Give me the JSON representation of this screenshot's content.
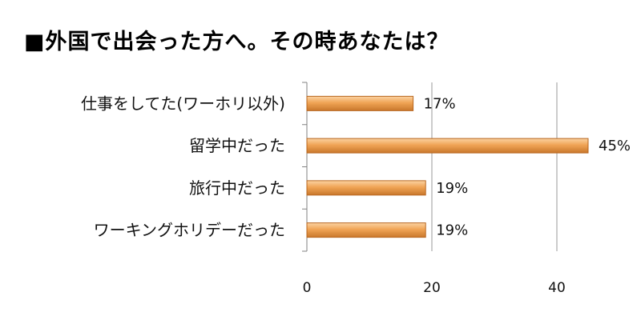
{
  "chart_data": {
    "type": "bar",
    "orientation": "horizontal",
    "title": "■外国で出会った方へ。その時あなたは？",
    "categories": [
      "仕事をしてた(ワーホリ以外)",
      "留学中だった",
      "旅行中だった",
      "ワーキングホリデーだった"
    ],
    "values": [
      17,
      45,
      19,
      19
    ],
    "data_labels": [
      "17%",
      "45%",
      "19%",
      "19%"
    ],
    "xlim": [
      0,
      53
    ],
    "xticks": [
      0,
      20,
      40
    ],
    "tick_labels": [
      "0",
      "20",
      "40"
    ],
    "grid": "vertical",
    "legend": "none",
    "bar_color": "#f0a455",
    "bar_edge_color": "#b8661e",
    "grid_color": "#9a9a9a"
  }
}
